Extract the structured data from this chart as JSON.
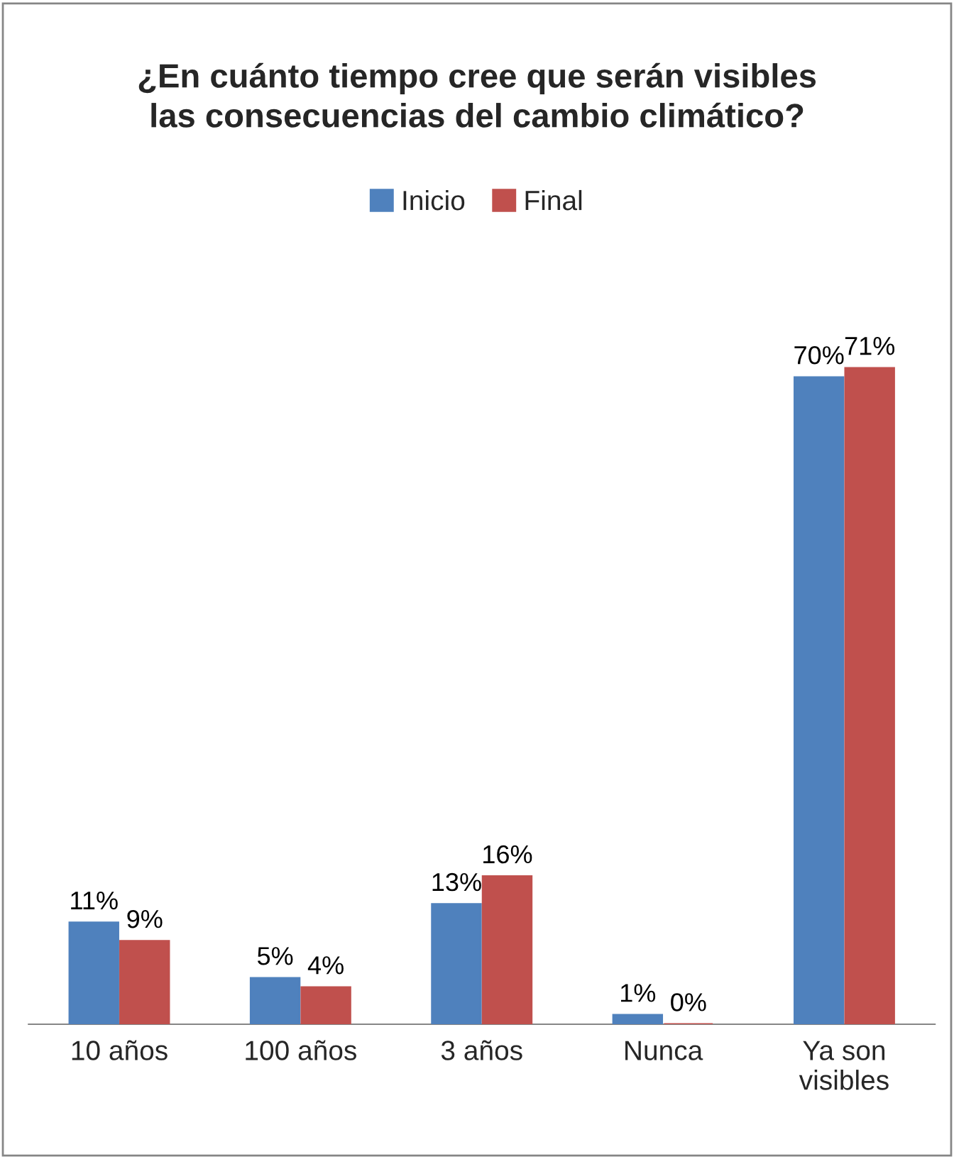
{
  "chart_data": {
    "type": "bar",
    "title": "¿En cuánto tiempo cree que serán visibles\nlas consecuencias del cambio climático?",
    "categories": [
      "10 años",
      "100 años",
      "3 años",
      "Nunca",
      "Ya son\nvisibles"
    ],
    "series": [
      {
        "name": "Inicio",
        "color": "#4f81bd",
        "values": [
          11,
          5,
          13,
          1,
          70
        ],
        "value_labels": [
          "11%",
          "5%",
          "13%",
          "1%",
          "70%"
        ]
      },
      {
        "name": "Final",
        "color": "#c0504d",
        "values": [
          9,
          4,
          16,
          0,
          71
        ],
        "value_labels": [
          "9%",
          "4%",
          "16%",
          "0%",
          "71%"
        ]
      }
    ],
    "legend": "top",
    "grid": false
  }
}
